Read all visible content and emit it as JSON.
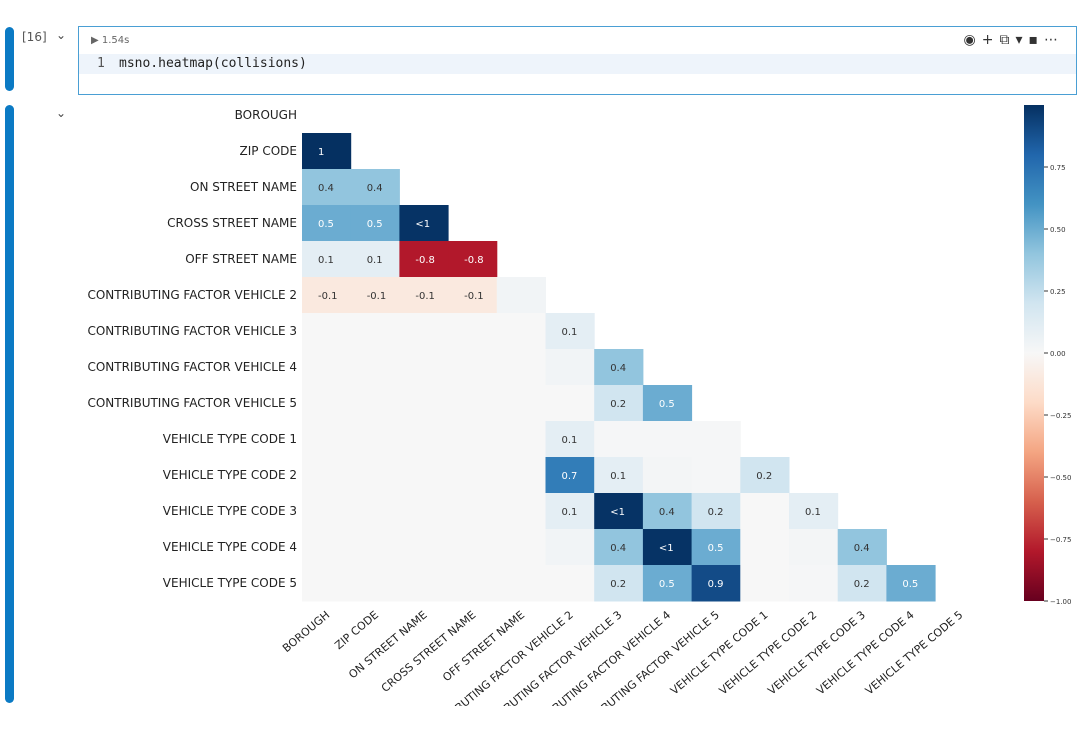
{
  "cell": {
    "execution_count": "[16]",
    "duration": "1.54s",
    "line_number": "1",
    "code": "msno.heatmap(collisions)"
  },
  "chart_data": {
    "type": "heatmap",
    "labels": [
      "BOROUGH",
      "ZIP CODE",
      "ON STREET NAME",
      "CROSS STREET NAME",
      "OFF STREET NAME",
      "CONTRIBUTING FACTOR VEHICLE 2",
      "CONTRIBUTING FACTOR VEHICLE 3",
      "CONTRIBUTING FACTOR VEHICLE 4",
      "CONTRIBUTING FACTOR VEHICLE 5",
      "VEHICLE TYPE CODE 1",
      "VEHICLE TYPE CODE 2",
      "VEHICLE TYPE CODE 3",
      "VEHICLE TYPE CODE 4",
      "VEHICLE TYPE CODE 5"
    ],
    "values": [
      [],
      [
        1
      ],
      [
        0.4,
        0.4
      ],
      [
        0.5,
        0.5,
        0.99
      ],
      [
        0.1,
        0.1,
        -0.8,
        -0.8
      ],
      [
        -0.1,
        -0.1,
        -0.1,
        -0.1,
        0.03
      ],
      [
        0,
        0,
        0,
        0,
        0,
        0.1
      ],
      [
        0,
        0,
        0,
        0,
        0,
        0.03,
        0.4
      ],
      [
        0,
        0,
        0,
        0,
        0,
        0,
        0.2,
        0.5
      ],
      [
        0,
        0,
        0,
        0,
        0,
        0.1,
        0.01,
        0.01,
        0.01
      ],
      [
        0,
        0,
        0,
        0,
        0,
        0.7,
        0.1,
        0.02,
        0.01,
        0.2
      ],
      [
        0,
        0,
        0,
        0,
        0,
        0.1,
        0.99,
        0.4,
        0.2,
        0,
        0.1
      ],
      [
        0,
        0,
        0,
        0,
        0,
        0.03,
        0.4,
        0.99,
        0.5,
        0,
        0.02,
        0.4
      ],
      [
        0,
        0,
        0,
        0,
        0,
        0,
        0.2,
        0.5,
        0.9,
        0,
        0.01,
        0.2,
        0.5
      ]
    ],
    "value_labels": [
      [],
      [
        "1"
      ],
      [
        "0.4",
        "0.4"
      ],
      [
        "0.5",
        "0.5",
        "<1"
      ],
      [
        "0.1",
        "0.1",
        "-0.8",
        "-0.8"
      ],
      [
        "-0.1",
        "-0.1",
        "-0.1",
        "-0.1",
        null
      ],
      [
        null,
        null,
        null,
        null,
        null,
        "0.1"
      ],
      [
        null,
        null,
        null,
        null,
        null,
        null,
        "0.4"
      ],
      [
        null,
        null,
        null,
        null,
        null,
        null,
        "0.2",
        "0.5"
      ],
      [
        null,
        null,
        null,
        null,
        null,
        "0.1",
        null,
        null,
        null
      ],
      [
        null,
        null,
        null,
        null,
        null,
        "0.7",
        "0.1",
        null,
        null,
        "0.2"
      ],
      [
        null,
        null,
        null,
        null,
        null,
        "0.1",
        "<1",
        "0.4",
        "0.2",
        null,
        "0.1"
      ],
      [
        null,
        null,
        null,
        null,
        null,
        null,
        "0.4",
        "<1",
        "0.5",
        null,
        null,
        "0.4"
      ],
      [
        null,
        null,
        null,
        null,
        null,
        null,
        "0.2",
        "0.5",
        "0.9",
        null,
        null,
        "0.2",
        "0.5"
      ]
    ],
    "colormap": "RdBu",
    "zlim": [
      -1,
      1
    ],
    "colorbar_ticks": [
      {
        "value": -1,
        "label": "−1.00"
      },
      {
        "value": -0.75,
        "label": "−0.75"
      },
      {
        "value": -0.5,
        "label": "−0.50"
      },
      {
        "value": -0.25,
        "label": "−0.25"
      },
      {
        "value": 0,
        "label": "0.00"
      },
      {
        "value": 0.25,
        "label": "0.25"
      },
      {
        "value": 0.5,
        "label": "0.50"
      },
      {
        "value": 0.75,
        "label": "0.75"
      }
    ]
  }
}
